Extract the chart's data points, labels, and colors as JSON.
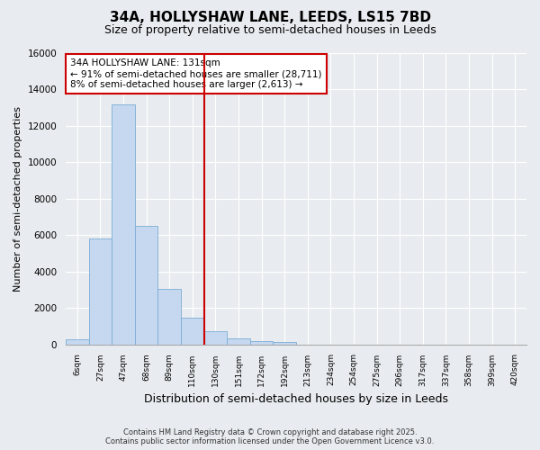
{
  "title1": "34A, HOLLYSHAW LANE, LEEDS, LS15 7BD",
  "title2": "Size of property relative to semi-detached houses in Leeds",
  "xlabel": "Distribution of semi-detached houses by size in Leeds",
  "ylabel": "Number of semi-detached properties",
  "categories": [
    "6sqm",
    "27sqm",
    "47sqm",
    "68sqm",
    "89sqm",
    "110sqm",
    "130sqm",
    "151sqm",
    "172sqm",
    "192sqm",
    "213sqm",
    "234sqm",
    "254sqm",
    "275sqm",
    "296sqm",
    "317sqm",
    "337sqm",
    "358sqm",
    "399sqm",
    "420sqm"
  ],
  "bar_heights": [
    300,
    5800,
    13200,
    6500,
    3050,
    1450,
    700,
    320,
    180,
    120,
    0,
    0,
    0,
    0,
    0,
    0,
    0,
    0,
    0,
    0
  ],
  "bar_color": "#c5d8f0",
  "bar_edge_color": "#7aadd4",
  "ylim": [
    0,
    16000
  ],
  "yticks": [
    0,
    2000,
    4000,
    6000,
    8000,
    10000,
    12000,
    14000,
    16000
  ],
  "vline_x": 5.5,
  "annotation_title": "34A HOLLYSHAW LANE: 131sqm",
  "annotation_line1": "← 91% of semi-detached houses are smaller (28,711)",
  "annotation_line2": "8% of semi-detached houses are larger (2,613) →",
  "vline_color": "#cc0000",
  "annotation_box_color": "#ffffff",
  "annotation_box_edge": "#cc0000",
  "background_color": "#e8ecf0",
  "plot_bg_color": "#e8ecf0",
  "grid_color": "#ffffff",
  "footer1": "Contains HM Land Registry data © Crown copyright and database right 2025.",
  "footer2": "Contains public sector information licensed under the Open Government Licence v3.0."
}
